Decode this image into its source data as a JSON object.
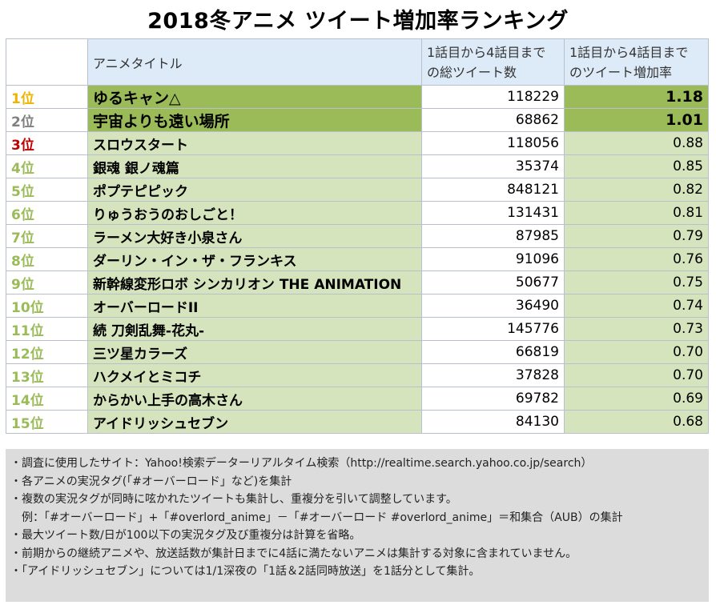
{
  "title": "2018冬アニメ ツイート増加率ランキング",
  "header": {
    "rank": "",
    "title_col": "アニメタイトル",
    "count_col_line1": "1話目から4話目まで",
    "count_col_line2": "の総ツイート数",
    "rate_col_line1": "1話目から4話目まで",
    "rate_col_line2": "のツイート増加率"
  },
  "colors": {
    "rank1": "#f0b400",
    "rank2": "#808080",
    "rank3": "#c00000",
    "rank_other": "#9bbb59",
    "top_fill": "#9bbb59",
    "row_fill": "#d6e4bd",
    "header_fill": "#ddeaf7",
    "notes_fill": "#dcdcdc"
  },
  "rows": [
    {
      "rank": "1位",
      "title": "ゆるキャン△",
      "count": "118229",
      "rate": "1.18"
    },
    {
      "rank": "2位",
      "title": "宇宙よりも遠い場所",
      "count": "68862",
      "rate": "1.01"
    },
    {
      "rank": "3位",
      "title": "スロウスタート",
      "count": "118056",
      "rate": "0.88"
    },
    {
      "rank": "4位",
      "title": "銀魂 銀ノ魂篇",
      "count": "35374",
      "rate": "0.85"
    },
    {
      "rank": "5位",
      "title": "ポプテピピック",
      "count": "848121",
      "rate": "0.82"
    },
    {
      "rank": "6位",
      "title": "りゅうおうのおしごと！",
      "count": "131431",
      "rate": "0.81"
    },
    {
      "rank": "7位",
      "title": "ラーメン大好き小泉さん",
      "count": "87985",
      "rate": "0.79"
    },
    {
      "rank": "8位",
      "title": "ダーリン・イン・ザ・フランキス",
      "count": "91096",
      "rate": "0.76"
    },
    {
      "rank": "9位",
      "title": "新幹線変形ロボ シンカリオン THE ANIMATION",
      "count": "50677",
      "rate": "0.75"
    },
    {
      "rank": "10位",
      "title": "オーバーロードII",
      "count": "36490",
      "rate": "0.74"
    },
    {
      "rank": "11位",
      "title": "続 刀剣乱舞-花丸-",
      "count": "145776",
      "rate": "0.73"
    },
    {
      "rank": "12位",
      "title": "三ツ星カラーズ",
      "count": "66819",
      "rate": "0.70"
    },
    {
      "rank": "13位",
      "title": "ハクメイとミコチ",
      "count": "37828",
      "rate": "0.70"
    },
    {
      "rank": "14位",
      "title": "からかい上手の高木さん",
      "count": "69782",
      "rate": "0.69"
    },
    {
      "rank": "15位",
      "title": "アイドリッシュセブン",
      "count": "84130",
      "rate": "0.68"
    }
  ],
  "notes": [
    "・調査に使用したサイト：Yahoo!検索データーリアルタイム検索（http://realtime.search.yahoo.co.jp/search）",
    "・各アニメの実況タグ(「#オーバーロード」など)を集計",
    "・複数の実況タグが同時に呟かれたツイートも集計し、重複分を引いて調整しています。",
    "　例：「#オーバーロード」+「#overlord_anime」－「#オーバーロード #overlord_anime」＝和集合（AUB）の集計",
    "・最大ツイート数/日が100以下の実況タグ及び重複分は計算を省略。",
    "・前期からの継続アニメや、放送話数が集計日までに4話に満たないアニメは集計する対象に含まれていません。",
    "・「アイドリッシュセブン」については1/1深夜の「1話＆2話同時放送」を1話分として集計。"
  ]
}
